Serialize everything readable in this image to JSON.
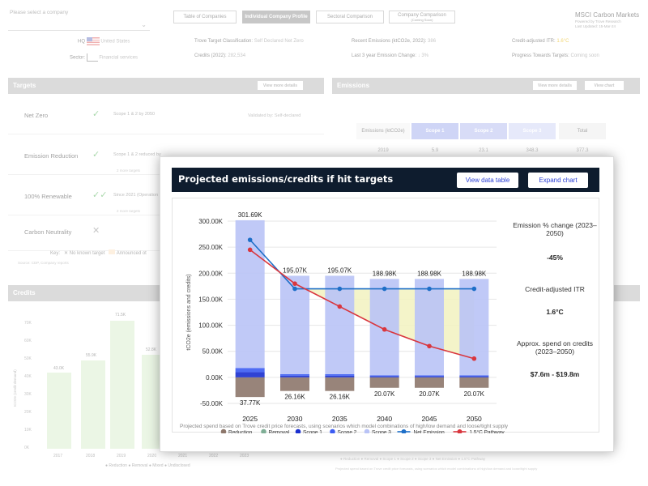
{
  "header": {
    "company_select_placeholder": "Please select a company",
    "tabs": [
      {
        "label": "Table of Companies"
      },
      {
        "label": "Individual Company Profile"
      },
      {
        "label": "Sectoral Comparison"
      },
      {
        "label": "Company Comparison",
        "sub": "(Coming Soon)"
      }
    ],
    "brand": "MSCI Carbon Markets",
    "brand_sub": "Powered by Trove Research",
    "last_updated": "Last Updated: 15-Mar-24"
  },
  "info": {
    "hq_label": "HQ",
    "hq_value": "United States",
    "sector_label": "Sector:",
    "sector_value": "Financial services",
    "trove_label": "Trove Target Classification:",
    "trove_value": "Self Declared Net Zero",
    "credits_label": "Credits (2022):",
    "credits_value": "282,534",
    "recent_label": "Recent Emissions (ktCO2e, 2022):",
    "recent_value": "386",
    "last3_label": "Last 3 year Emission Change:",
    "last3_value": "3%",
    "itr_label": "Credit-adjusted ITR:",
    "itr_value": "1.6°C",
    "progress_label": "Progress Towards Targets:",
    "progress_value": "Coming soon"
  },
  "targets": {
    "title": "Targets",
    "button": "View more details",
    "rows": [
      {
        "name": "Net Zero",
        "desc": "Scope 1 & 2 by 2050",
        "validated": "Validated by: Self-declared"
      },
      {
        "name": "Emission Reduction",
        "desc": "Scope 1 & 2 reduced by",
        "sub": "2 more targets"
      },
      {
        "name": "100% Renewable",
        "desc": "Since 2021 (Operation",
        "sub": "2 more targets"
      },
      {
        "name": "Carbon Neutrality",
        "desc": ""
      }
    ],
    "key_label": "Key:",
    "key_no_target": "No known target",
    "key_announced": "Announced ot",
    "source": "Source: CDP, Company reports"
  },
  "emissions": {
    "title": "Emissions",
    "btn_details": "View more details",
    "btn_chart": "View chart",
    "headers": [
      "Emissions (ktCO2e)",
      "Scope 1",
      "Scope 2",
      "Scope 3",
      "Total"
    ],
    "row": [
      "2019",
      "5.9",
      "23.1",
      "348.3",
      "377.3"
    ]
  },
  "credits": {
    "title": "Credits",
    "y_axis_label": "tCO2e (credit demand)",
    "yticks": [
      "70K",
      "60K",
      "50K",
      "40K",
      "30K",
      "20K",
      "10K",
      "0K"
    ],
    "years": [
      "2017",
      "2018",
      "2019",
      "2020",
      "2021",
      "2022",
      "2023"
    ],
    "bar_labels": [
      "43.0K",
      "55.9K",
      "71.5K",
      "52.8K"
    ],
    "legend": "● Reduction  ● Removal  ● Mixed  ● Undisclosed",
    "bg_legend": "● Reduction  ● Removal  ● Scope 1  ● Scope 2  ● Scope 3  ● Net Emission  ● 1.5°C Pathway",
    "bg_footnote": "Projected spend based on Trove credit price forecasts, using scenarios which model combinations of high/low demand and loose/tight supply"
  },
  "modal": {
    "title": "Projected emissions/credits if hit targets",
    "btn_table": "View data table",
    "btn_expand": "Expand chart",
    "side": {
      "em_change_title": "Emission % change (2023–2050)",
      "em_change_value": "-45%",
      "itr_title": "Credit-adjusted ITR",
      "itr_value": "1.6°C",
      "spend_title": "Approx. spend on credits (2023–2050)",
      "spend_value": "$7.6m - $19.8m"
    },
    "footnote": "Projected spend based on Trove credit price forecasts, using scenarios which model combinations of high/low demand and loose/tight supply"
  },
  "chart_data": {
    "type": "bar",
    "title": "Projected emissions/credits if hit targets",
    "ylabel": "tCO2e (emissions and credits)",
    "ylim": [
      -50000,
      300000
    ],
    "yticks": [
      "300.00K",
      "250.00K",
      "200.00K",
      "150.00K",
      "100.00K",
      "50.00K",
      "0.00K",
      "-50.00K"
    ],
    "categories": [
      "2025",
      "2030",
      "2035",
      "2040",
      "2045",
      "2050"
    ],
    "stacked_series": [
      {
        "name": "Reduction",
        "color": "#8d776b",
        "values": [
          -37770,
          -26160,
          -26160,
          -20070,
          -20070,
          -20070
        ]
      },
      {
        "name": "Scope 1",
        "color": "#1a2fcf",
        "values": [
          10000,
          3000,
          3000,
          2000,
          2000,
          2000
        ]
      },
      {
        "name": "Scope 2",
        "color": "#3c5cf2",
        "values": [
          8000,
          3000,
          3000,
          2000,
          2000,
          2000
        ]
      },
      {
        "name": "Scope 3",
        "color": "#b9c3f6",
        "values": [
          283690,
          189070,
          189070,
          184980,
          184980,
          184980
        ]
      }
    ],
    "bar_top_labels": [
      "301.69K",
      "195.07K",
      "195.07K",
      "188.98K",
      "188.98K",
      "188.98K"
    ],
    "bar_bottom_labels": [
      "37.77K",
      "26.16K",
      "26.16K",
      "20.07K",
      "20.07K",
      "20.07K"
    ],
    "line_series": [
      {
        "name": "Net Emission",
        "color": "#1e6fc8",
        "values": [
          264000,
          170000,
          170000,
          170000,
          170000,
          170000
        ]
      },
      {
        "name": "1.5°C Pathway",
        "color": "#d9363e",
        "values": [
          245000,
          180000,
          136000,
          92000,
          60000,
          36000
        ]
      }
    ],
    "legend": [
      {
        "name": "Reduction",
        "color": "#8d776b",
        "kind": "dot"
      },
      {
        "name": "Removal",
        "color": "#7fae96",
        "kind": "dot"
      },
      {
        "name": "Scope 1",
        "color": "#1a2fcf",
        "kind": "dot"
      },
      {
        "name": "Scope 2",
        "color": "#3c5cf2",
        "kind": "dot"
      },
      {
        "name": "Scope 3",
        "color": "#b9c3f6",
        "kind": "dot"
      },
      {
        "name": "Net Emission",
        "color": "#1e6fc8",
        "kind": "line"
      },
      {
        "name": "1.5°C Pathway",
        "color": "#d9363e",
        "kind": "line"
      }
    ],
    "shaded_gap_color": "#f2f2c0",
    "grid": true
  }
}
